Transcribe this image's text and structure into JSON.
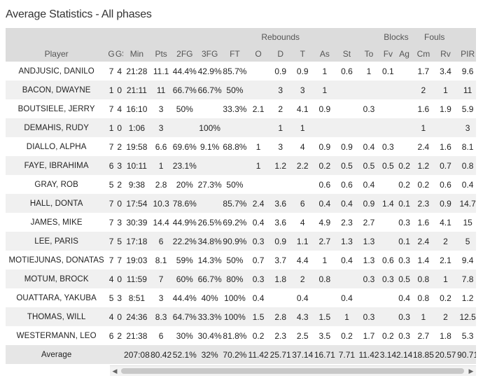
{
  "title": "Average Statistics - All phases",
  "group_headers": {
    "rebounds": "Rebounds",
    "blocks": "Blocks",
    "fouls": "Fouls"
  },
  "columns": [
    "Player",
    "G",
    "GS",
    "Min",
    "Pts",
    "2FG",
    "3FG",
    "FT",
    "O",
    "D",
    "T",
    "As",
    "St",
    "To",
    "Fv",
    "Ag",
    "Cm",
    "Rv",
    "PIR"
  ],
  "rows": [
    [
      "ANDJUSIC, DANILO",
      "7",
      "4",
      "21:28",
      "11.1",
      "44.4%",
      "42.9%",
      "85.7%",
      "",
      "0.9",
      "0.9",
      "1",
      "0.6",
      "1",
      "0.1",
      "",
      "1.7",
      "3.4",
      "9.6"
    ],
    [
      "BACON, DWAYNE",
      "1",
      "0",
      "21:11",
      "11",
      "66.7%",
      "66.7%",
      "50%",
      "",
      "3",
      "3",
      "1",
      "",
      "",
      "",
      "",
      "2",
      "1",
      "11"
    ],
    [
      "BOUTSIELE, JERRY",
      "7",
      "4",
      "16:10",
      "3",
      "50%",
      "",
      "33.3%",
      "2.1",
      "2",
      "4.1",
      "0.9",
      "",
      "0.3",
      "",
      "",
      "1.6",
      "1.9",
      "5.9"
    ],
    [
      "DEMAHIS, RUDY",
      "1",
      "0",
      "1:06",
      "3",
      "",
      "100%",
      "",
      "",
      "1",
      "1",
      "",
      "",
      "",
      "",
      "",
      "1",
      "",
      "3"
    ],
    [
      "DIALLO, ALPHA",
      "7",
      "2",
      "19:58",
      "6.6",
      "69.6%",
      "9.1%",
      "68.8%",
      "1",
      "3",
      "4",
      "0.9",
      "0.9",
      "0.4",
      "0.3",
      "",
      "2.4",
      "1.6",
      "8.1"
    ],
    [
      "FAYE, IBRAHIMA",
      "6",
      "3",
      "10:11",
      "1",
      "23.1%",
      "",
      "",
      "1",
      "1.2",
      "2.2",
      "0.2",
      "0.5",
      "0.5",
      "0.5",
      "0.2",
      "1.2",
      "0.7",
      "0.8"
    ],
    [
      "GRAY, ROB",
      "5",
      "2",
      "9:38",
      "2.8",
      "20%",
      "27.3%",
      "50%",
      "",
      "",
      "",
      "0.6",
      "0.6",
      "0.4",
      "",
      "0.2",
      "0.2",
      "0.6",
      "0.4"
    ],
    [
      "HALL, DONTA",
      "7",
      "0",
      "17:54",
      "10.3",
      "78.6%",
      "",
      "85.7%",
      "2.4",
      "3.6",
      "6",
      "0.4",
      "0.4",
      "0.9",
      "1.4",
      "0.1",
      "2.3",
      "0.9",
      "14.7"
    ],
    [
      "JAMES, MIKE",
      "7",
      "3",
      "30:39",
      "14.4",
      "44.9%",
      "26.5%",
      "69.2%",
      "0.4",
      "3.6",
      "4",
      "4.9",
      "2.3",
      "2.7",
      "",
      "0.3",
      "1.6",
      "4.1",
      "15"
    ],
    [
      "LEE, PARIS",
      "7",
      "5",
      "17:18",
      "6",
      "22.2%",
      "34.8%",
      "90.9%",
      "0.3",
      "0.9",
      "1.1",
      "2.7",
      "1.3",
      "1.3",
      "",
      "0.1",
      "2.4",
      "2",
      "5"
    ],
    [
      "MOTIEJUNAS, DONATAS",
      "7",
      "7",
      "19:03",
      "8.1",
      "59%",
      "14.3%",
      "50%",
      "0.7",
      "3.7",
      "4.4",
      "1",
      "0.4",
      "1.3",
      "0.6",
      "0.3",
      "1.4",
      "2.1",
      "9.4"
    ],
    [
      "MOTUM, BROCK",
      "4",
      "0",
      "11:59",
      "7",
      "60%",
      "66.7%",
      "80%",
      "0.3",
      "1.8",
      "2",
      "0.8",
      "",
      "0.3",
      "0.3",
      "0.5",
      "0.8",
      "1",
      "7.8"
    ],
    [
      "OUATTARA, YAKUBA",
      "5",
      "3",
      "8:51",
      "3",
      "44.4%",
      "40%",
      "100%",
      "0.4",
      "",
      "0.4",
      "",
      "0.4",
      "",
      "",
      "0.4",
      "0.8",
      "0.2",
      "1.2"
    ],
    [
      "THOMAS, WILL",
      "4",
      "0",
      "24:36",
      "8.3",
      "64.7%",
      "33.3%",
      "100%",
      "1.5",
      "2.8",
      "4.3",
      "1.5",
      "1",
      "0.3",
      "",
      "0.3",
      "1",
      "2",
      "12.5"
    ],
    [
      "WESTERMANN, LEO",
      "6",
      "2",
      "21:38",
      "6",
      "30%",
      "30.4%",
      "81.8%",
      "0.2",
      "2.3",
      "2.5",
      "3.5",
      "0.2",
      "1.7",
      "0.2",
      "0.3",
      "2.7",
      "1.8",
      "5.3"
    ]
  ],
  "average": [
    "Average",
    "",
    "",
    "207:08",
    "80.42",
    "52.1%",
    "32%",
    "70.2%",
    "11.42",
    "25.71",
    "37.14",
    "16.71",
    "7.71",
    "11.42",
    "3.14",
    "2.14",
    "18.85",
    "20.57",
    "90.71"
  ],
  "scroll": {
    "left_arrow": "◀",
    "right_arrow": "▶"
  }
}
